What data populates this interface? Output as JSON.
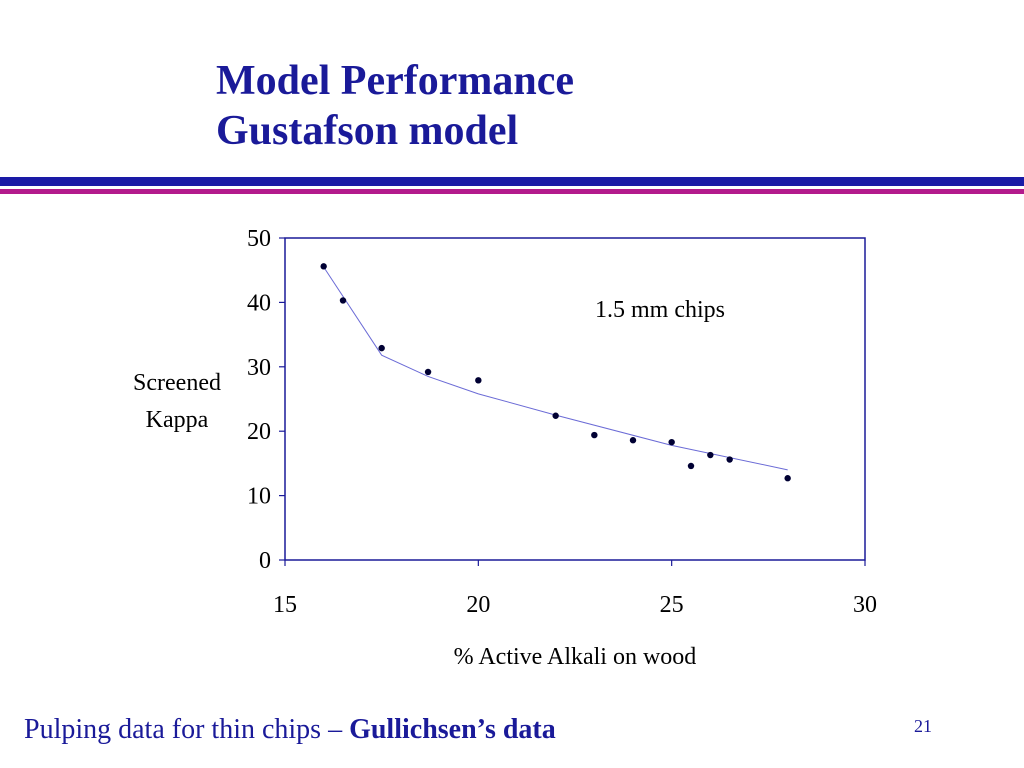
{
  "slide": {
    "title_line1": "Model Performance",
    "title_line2": "Gustafson model",
    "footer_text": "Pulping data for thin chips – ",
    "footer_bold": "Gullichsen’s data",
    "page_number": "21"
  },
  "colors": {
    "title": "#1a1a99",
    "rule_blue": "#1a1aa6",
    "rule_magenta": "#b31a8c",
    "axis": "#1a1a99",
    "fit_line": "#6b6bd6",
    "points": "#000033"
  },
  "chart_data": {
    "type": "scatter",
    "title": "",
    "xlabel": "% Active Alkali on wood",
    "ylabel_lines": [
      "Screened",
      "Kappa"
    ],
    "annotation": "1.5 mm chips",
    "xlim": [
      15,
      30
    ],
    "ylim": [
      0,
      50
    ],
    "x_ticks": [
      15,
      20,
      25,
      30
    ],
    "y_ticks": [
      0,
      10,
      20,
      30,
      40,
      50
    ],
    "grid": false,
    "series": [
      {
        "type": "scatter",
        "x": [
          16.0,
          16.5,
          17.5,
          18.7,
          20.0,
          22.0,
          23.0,
          24.0,
          25.0,
          25.5,
          26.0,
          26.5,
          28.0
        ],
        "y": [
          45.6,
          40.3,
          32.9,
          29.2,
          27.9,
          22.4,
          19.4,
          18.6,
          18.3,
          14.6,
          16.3,
          15.6,
          12.7
        ]
      },
      {
        "type": "line",
        "x": [
          16.0,
          17.5,
          18.7,
          20.0,
          22.0,
          25.0,
          28.0
        ],
        "y": [
          45.5,
          31.8,
          28.5,
          25.8,
          22.5,
          17.8,
          14.0
        ]
      }
    ]
  }
}
